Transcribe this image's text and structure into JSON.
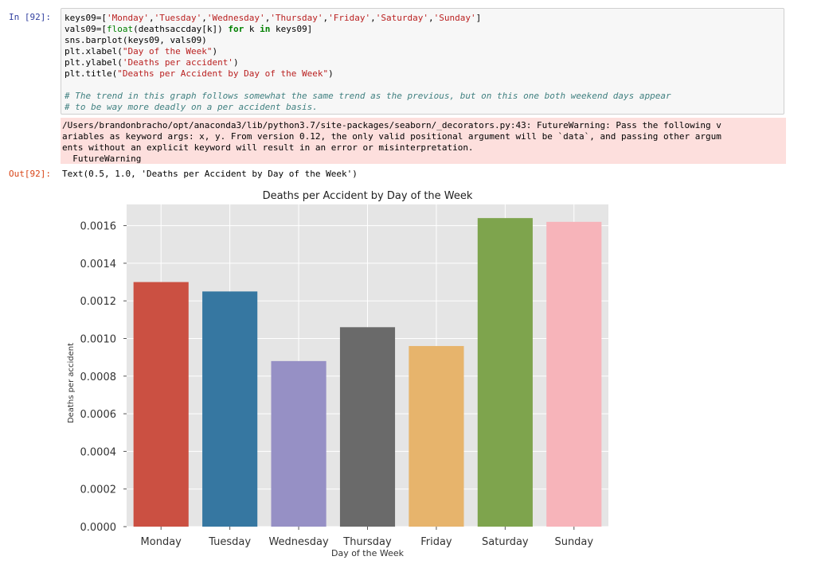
{
  "cells": {
    "in_prompt": "In [92]:",
    "out_prompt": "Out[92]:",
    "code_lines": [
      "keys09=['Monday','Tuesday','Wednesday','Thursday','Friday','Saturday','Sunday']",
      "vals09=[float(deathsaccday[k]) for k in keys09]",
      "sns.barplot(keys09, vals09)",
      "plt.xlabel(\"Day of the Week\")",
      "plt.ylabel('Deaths per accident')",
      "plt.title(\"Deaths per Accident by Day of the Week\")",
      "",
      "# The trend in this graph follows somewhat the same trend as the previous, but on this one both weekend days appear",
      "# to be way more deadly on a per accident basis."
    ],
    "stderr_lines": [
      "/Users/brandonbracho/opt/anaconda3/lib/python3.7/site-packages/seaborn/_decorators.py:43: FutureWarning: Pass the following v",
      "ariables as keyword args: x, y. From version 0.12, the only valid positional argument will be `data`, and passing other argum",
      "ents without an explicit keyword will result in an error or misinterpretation.",
      "  FutureWarning"
    ],
    "output_text": "Text(0.5, 1.0, 'Deaths per Accident by Day of the Week')"
  },
  "chart_data": {
    "type": "bar",
    "title": "Deaths per Accident by Day of the Week",
    "xlabel": "Day of the Week",
    "ylabel": "Deaths per accident",
    "categories": [
      "Monday",
      "Tuesday",
      "Wednesday",
      "Thursday",
      "Friday",
      "Saturday",
      "Sunday"
    ],
    "values": [
      0.0013,
      0.00125,
      0.00088,
      0.00106,
      0.00096,
      0.00164,
      0.00162
    ],
    "colors": [
      "#cb5042",
      "#3677a1",
      "#9690c5",
      "#6a6a6a",
      "#e7b46c",
      "#7ea44d",
      "#f7b4ba"
    ],
    "ylim": [
      0,
      0.00168
    ],
    "yticks": [
      "0.0000",
      "0.0002",
      "0.0004",
      "0.0006",
      "0.0008",
      "0.0010",
      "0.0012",
      "0.0014",
      "0.0016"
    ],
    "grid": true,
    "background": "#e5e5e5"
  }
}
